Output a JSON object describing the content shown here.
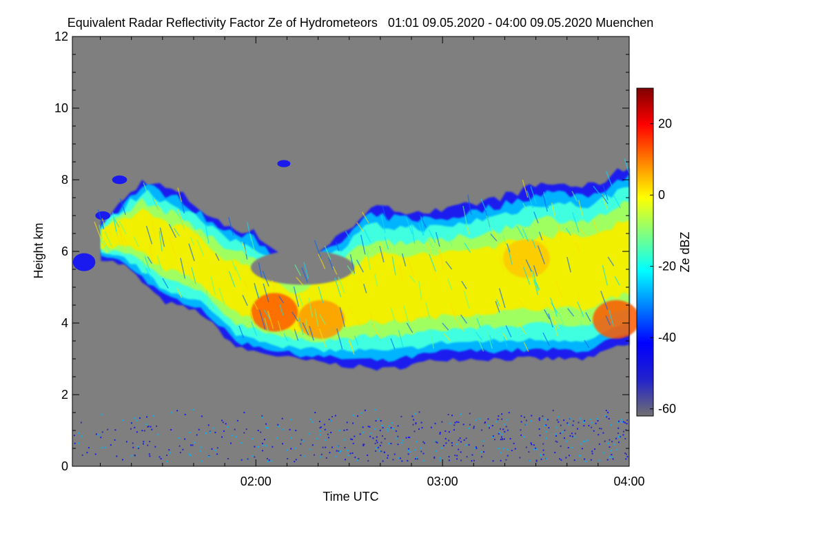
{
  "chart_data": {
    "type": "heatmap",
    "title": "Equivalent Radar Reflectivity Factor Ze of Hydrometeors   01:01 09.05.2020 - 04:00 09.05.2020 Muenchen",
    "xlabel": "Time UTC",
    "ylabel": "Height km",
    "x_range_hours_utc": [
      1.017,
      4.0
    ],
    "x_ticks": [
      {
        "value": 2,
        "label": "02:00"
      },
      {
        "value": 3,
        "label": "03:00"
      },
      {
        "value": 4,
        "label": "04:00"
      }
    ],
    "ylim": [
      0,
      12
    ],
    "y_ticks": [
      {
        "value": 0,
        "label": "0"
      },
      {
        "value": 2,
        "label": "2"
      },
      {
        "value": 4,
        "label": "4"
      },
      {
        "value": 6,
        "label": "6"
      },
      {
        "value": 8,
        "label": "8"
      },
      {
        "value": 10,
        "label": "10"
      },
      {
        "value": 12,
        "label": "12"
      }
    ],
    "colorbar": {
      "label": "Ze dBZ",
      "range": [
        -62,
        30
      ],
      "ticks": [
        {
          "value": 20,
          "label": "20"
        },
        {
          "value": 0,
          "label": "0"
        },
        {
          "value": -20,
          "label": "-20"
        },
        {
          "value": -40,
          "label": "-40"
        },
        {
          "value": -60,
          "label": "-60"
        }
      ],
      "colors": [
        "#707070",
        "#2222cc",
        "#0000ff",
        "#0080ff",
        "#00ffff",
        "#80ff80",
        "#ffff00",
        "#ff8000",
        "#ff0000",
        "#800000"
      ]
    },
    "background_color": "#7f7f7f",
    "cloud_layer": {
      "approx_base_km": [
        [
          1.05,
          6.0
        ],
        [
          1.3,
          5.6
        ],
        [
          1.5,
          4.6
        ],
        [
          1.7,
          4.3
        ],
        [
          1.9,
          3.3
        ],
        [
          2.2,
          3.0
        ],
        [
          2.5,
          2.8
        ],
        [
          2.7,
          2.7
        ],
        [
          3.0,
          3.0
        ],
        [
          3.3,
          3.0
        ],
        [
          3.5,
          3.0
        ],
        [
          3.7,
          3.0
        ],
        [
          3.8,
          3.0
        ],
        [
          3.9,
          3.3
        ],
        [
          4.0,
          3.4
        ]
      ],
      "approx_top_km": [
        [
          1.05,
          6.1
        ],
        [
          1.25,
          7.2
        ],
        [
          1.4,
          8.0
        ],
        [
          1.6,
          7.6
        ],
        [
          1.8,
          6.8
        ],
        [
          2.0,
          6.5
        ],
        [
          2.2,
          5.6
        ],
        [
          2.45,
          6.4
        ],
        [
          2.6,
          7.2
        ],
        [
          3.0,
          7.1
        ],
        [
          3.3,
          7.5
        ],
        [
          3.55,
          7.9
        ],
        [
          3.8,
          7.8
        ],
        [
          4.0,
          8.4
        ]
      ],
      "peak_reflectivity_dBZ": 15,
      "peak_regions": [
        {
          "time": 2.1,
          "height_km": 4.3,
          "dBZ": 15
        },
        {
          "time": 2.35,
          "height_km": 4.1,
          "dBZ": 10
        },
        {
          "time": 3.45,
          "height_km": 5.8,
          "dBZ": 5
        },
        {
          "time": 3.93,
          "height_km": 4.1,
          "dBZ": 12
        }
      ]
    },
    "grid": false,
    "legend": "colorbar-right"
  }
}
